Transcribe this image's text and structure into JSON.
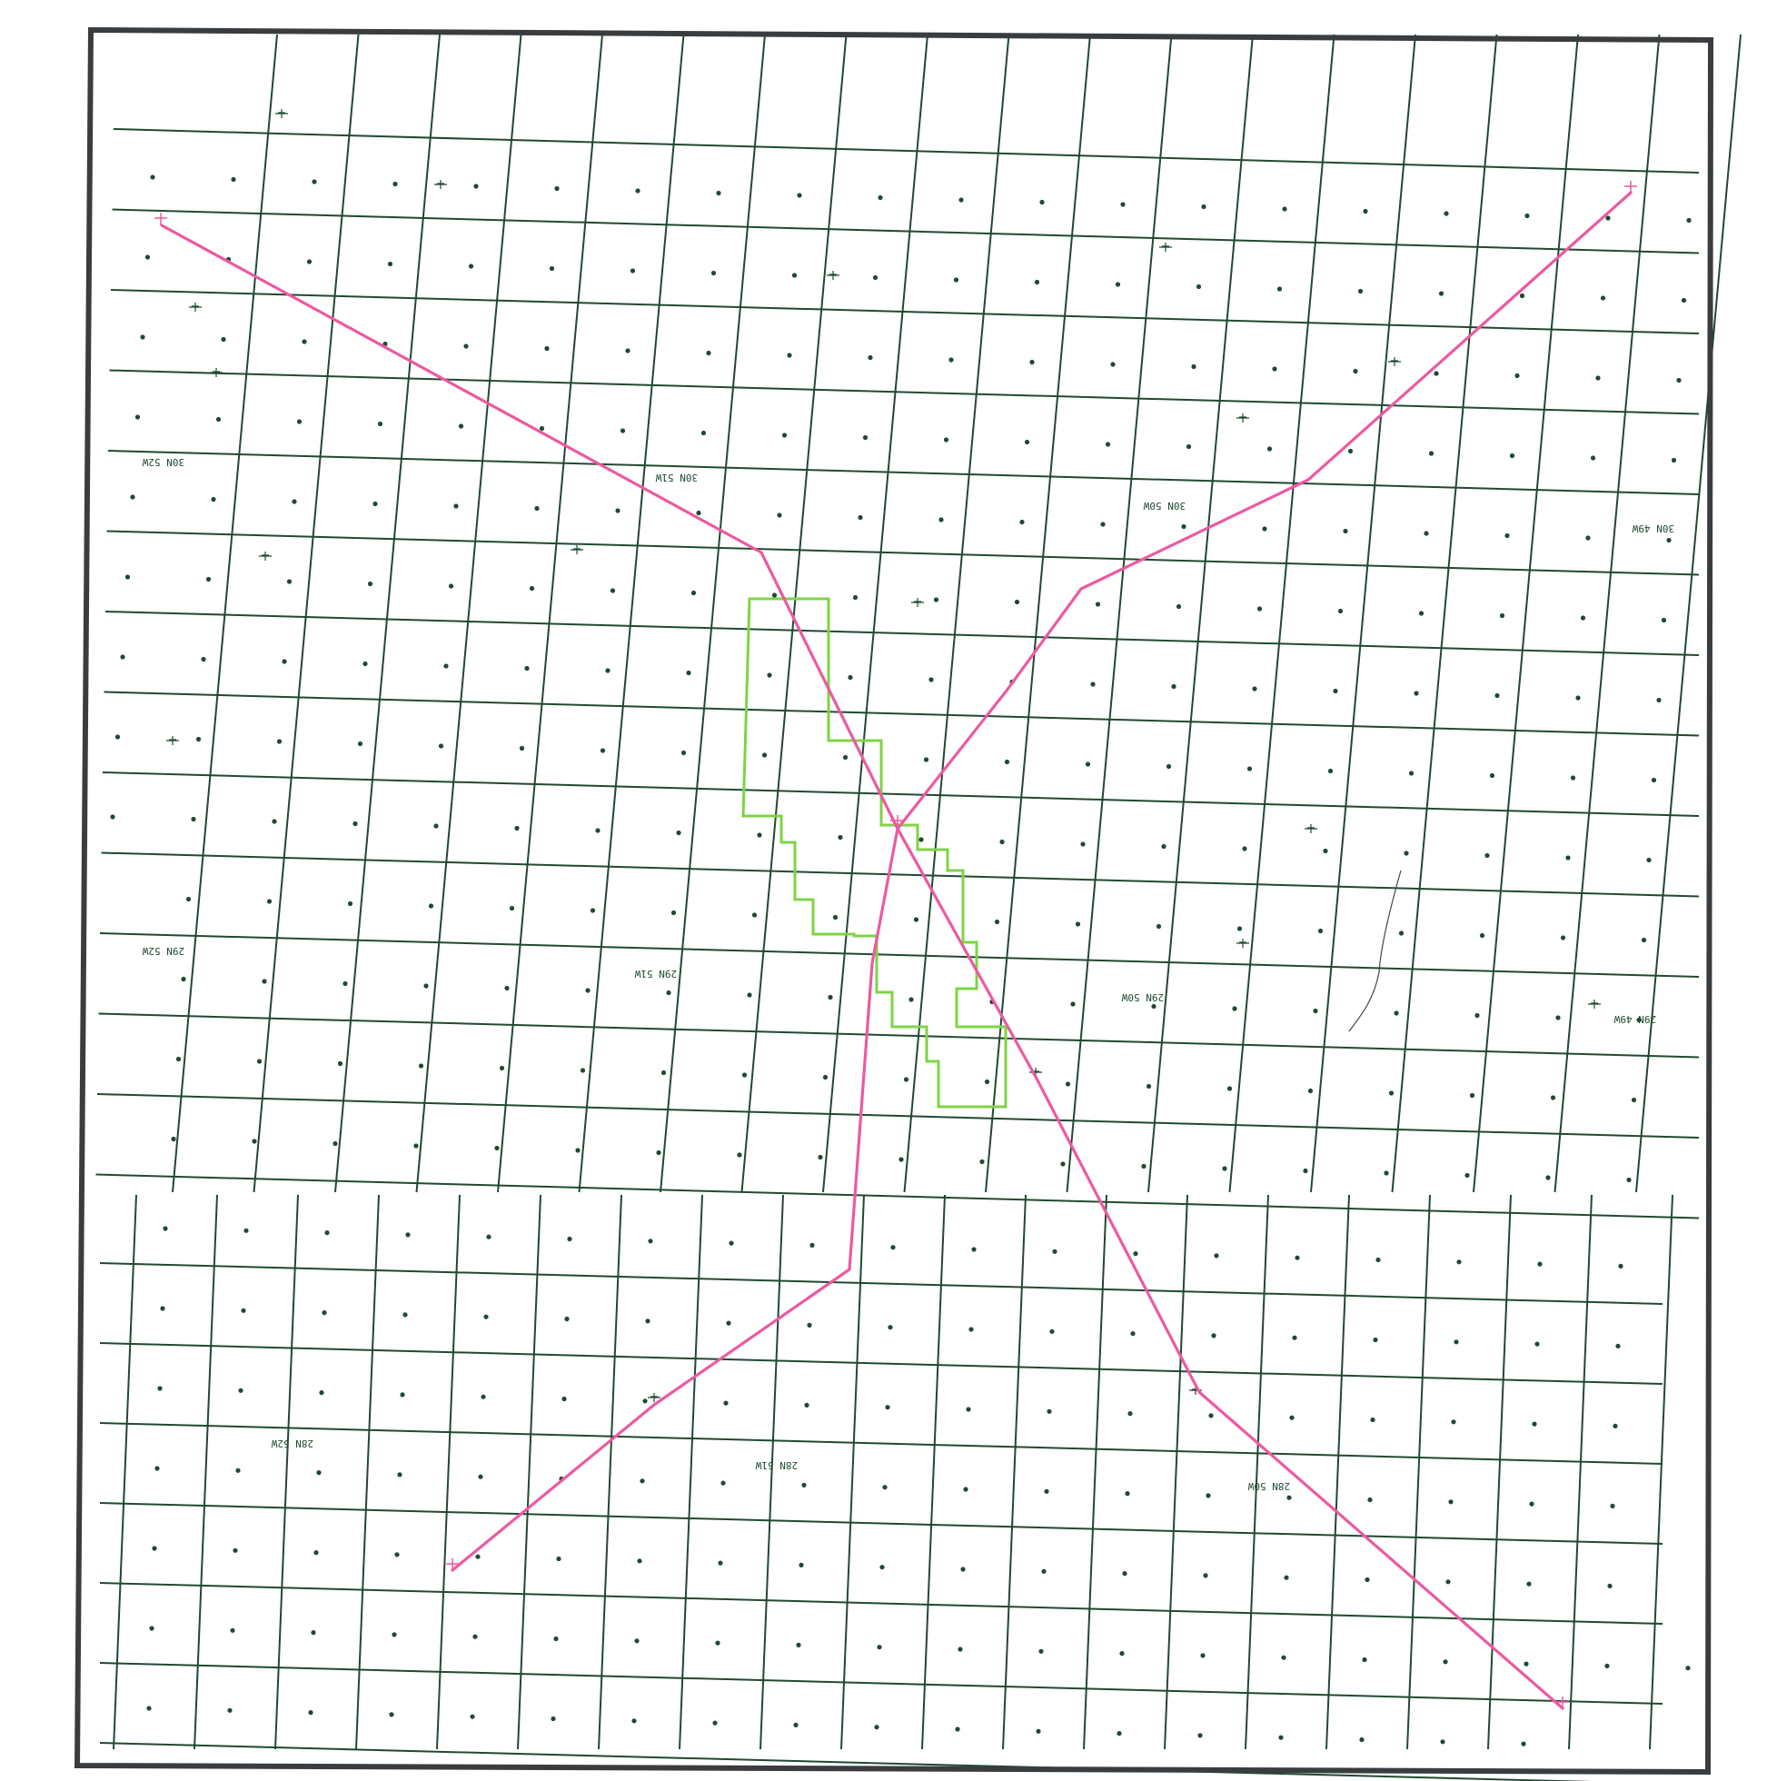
{
  "map": {
    "township_labels": [
      {
        "id": "30n-52w",
        "text": "30N 52W"
      },
      {
        "id": "30n-51w",
        "text": "30N 51W"
      },
      {
        "id": "30n-50w",
        "text": "30N 50W"
      },
      {
        "id": "30n-49w",
        "text": "30N 49W"
      },
      {
        "id": "29n-52w",
        "text": "29N 52W"
      },
      {
        "id": "29n-51w",
        "text": "29N 51W"
      },
      {
        "id": "29n-50w",
        "text": "29N 50W"
      },
      {
        "id": "29n-49w",
        "text": "29N 49W"
      },
      {
        "id": "28n-52w",
        "text": "28N 52W"
      },
      {
        "id": "28n-51w",
        "text": "28N 51W"
      },
      {
        "id": "28n-50w",
        "text": "28N 50W"
      }
    ],
    "colors": {
      "grid": "#1f4a30",
      "frame": "#3a3d40",
      "well_paths": "#ec5aa0",
      "unit_outline": "#7ed444"
    },
    "features": {
      "well_paths": [
        "northwest-lateral",
        "northeast-lateral",
        "southwest-lateral",
        "southeast-lateral"
      ],
      "unit_outline": "green-stepped-unit-boundary"
    }
  }
}
